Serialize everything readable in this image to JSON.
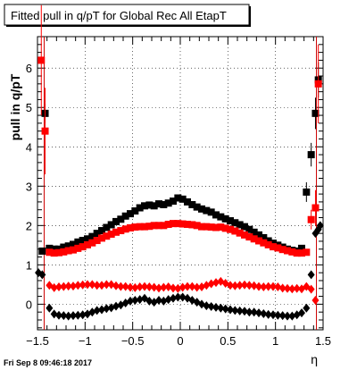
{
  "chart_data": {
    "type": "scatter",
    "title": "Fitted pull in q/pT for Global Rec All EtapT",
    "xlabel": "η",
    "ylabel": "pull in q/pT",
    "footer": "Fri Sep  8 09:46:18 2017",
    "xlim": [
      -1.5,
      1.5
    ],
    "ylim": [
      -0.65,
      6.8
    ],
    "x_ticks": [
      {
        "v": -1.5,
        "label": "−1.5"
      },
      {
        "v": -1,
        "label": "−1"
      },
      {
        "v": -0.5,
        "label": "−0.5"
      },
      {
        "v": 0,
        "label": "0"
      },
      {
        "v": 0.5,
        "label": "0.5"
      },
      {
        "v": 1,
        "label": "1"
      },
      {
        "v": 1.5,
        "label": "1.5"
      }
    ],
    "y_ticks": [
      {
        "v": 0,
        "label": "0"
      },
      {
        "v": 1,
        "label": "1"
      },
      {
        "v": 2,
        "label": "2"
      },
      {
        "v": 3,
        "label": "3"
      },
      {
        "v": 4,
        "label": "4"
      },
      {
        "v": 5,
        "label": "5"
      },
      {
        "v": 6,
        "label": "6"
      }
    ],
    "grid": true,
    "vertical_lines": {
      "x": [
        -1.43,
        1.43
      ],
      "color": "#cc0000"
    },
    "colors": {
      "black": "#000000",
      "red": "#ff0000"
    },
    "series": [
      {
        "marker": "square",
        "color": "#000000",
        "x": [
          -1.45,
          -1.42,
          -1.375,
          -1.325,
          -1.275,
          -1.225,
          -1.175,
          -1.125,
          -1.075,
          -1.025,
          -0.975,
          -0.925,
          -0.875,
          -0.825,
          -0.775,
          -0.725,
          -0.675,
          -0.625,
          -0.575,
          -0.525,
          -0.475,
          -0.425,
          -0.375,
          -0.325,
          -0.275,
          -0.225,
          -0.175,
          -0.125,
          -0.075,
          -0.025,
          0.025,
          0.075,
          0.125,
          0.175,
          0.225,
          0.275,
          0.325,
          0.375,
          0.425,
          0.475,
          0.525,
          0.575,
          0.625,
          0.675,
          0.725,
          0.775,
          0.825,
          0.875,
          0.925,
          0.975,
          1.025,
          1.075,
          1.125,
          1.175,
          1.225,
          1.275,
          1.325,
          1.375,
          1.42,
          1.45
        ],
        "y": [
          1.35,
          4.85,
          1.42,
          1.4,
          1.4,
          1.45,
          1.48,
          1.52,
          1.58,
          1.62,
          1.66,
          1.72,
          1.8,
          1.87,
          1.95,
          2.02,
          2.1,
          2.16,
          2.24,
          2.3,
          2.37,
          2.45,
          2.5,
          2.52,
          2.5,
          2.55,
          2.53,
          2.57,
          2.62,
          2.7,
          2.67,
          2.6,
          2.53,
          2.47,
          2.42,
          2.38,
          2.34,
          2.27,
          2.22,
          2.17,
          2.12,
          2.07,
          2.02,
          1.97,
          1.9,
          1.83,
          1.76,
          1.69,
          1.61,
          1.55,
          1.5,
          1.45,
          1.4,
          1.37,
          1.35,
          1.42,
          2.85,
          3.8,
          4.85,
          5.7
        ],
        "err": [
          0,
          0.25,
          0,
          0,
          0,
          0,
          0,
          0,
          0,
          0,
          0,
          0,
          0,
          0,
          0,
          0,
          0,
          0,
          0,
          0,
          0,
          0,
          0,
          0,
          0,
          0,
          0,
          0,
          0,
          0,
          0,
          0,
          0,
          0,
          0,
          0,
          0,
          0,
          0,
          0,
          0,
          0,
          0,
          0,
          0,
          0,
          0,
          0,
          0,
          0,
          0,
          0,
          0,
          0,
          0,
          0,
          0.25,
          0.3,
          0.4,
          0.45
        ]
      },
      {
        "marker": "square",
        "color": "#ff0000",
        "x": [
          -1.46,
          -1.42,
          -1.375,
          -1.325,
          -1.275,
          -1.225,
          -1.175,
          -1.125,
          -1.075,
          -1.025,
          -0.975,
          -0.925,
          -0.875,
          -0.825,
          -0.775,
          -0.725,
          -0.675,
          -0.625,
          -0.575,
          -0.525,
          -0.475,
          -0.425,
          -0.375,
          -0.325,
          -0.275,
          -0.225,
          -0.175,
          -0.125,
          -0.075,
          -0.025,
          0.025,
          0.075,
          0.125,
          0.175,
          0.225,
          0.275,
          0.325,
          0.375,
          0.425,
          0.475,
          0.525,
          0.575,
          0.625,
          0.675,
          0.725,
          0.775,
          0.825,
          0.875,
          0.925,
          0.975,
          1.025,
          1.075,
          1.125,
          1.175,
          1.225,
          1.275,
          1.325,
          1.375,
          1.42,
          1.45
        ],
        "y": [
          6.2,
          4.4,
          1.32,
          1.3,
          1.31,
          1.33,
          1.36,
          1.38,
          1.42,
          1.46,
          1.51,
          1.56,
          1.62,
          1.68,
          1.73,
          1.78,
          1.83,
          1.87,
          1.91,
          1.94,
          1.96,
          1.97,
          1.97,
          1.98,
          2.0,
          2.0,
          2.0,
          2.03,
          2.05,
          2.05,
          2.04,
          2.03,
          2.02,
          2.0,
          1.97,
          1.97,
          1.96,
          1.95,
          1.96,
          1.93,
          1.9,
          1.86,
          1.81,
          1.76,
          1.71,
          1.66,
          1.61,
          1.56,
          1.51,
          1.46,
          1.43,
          1.39,
          1.36,
          1.33,
          1.3,
          1.3,
          1.32,
          2.15,
          2.45,
          5.6
        ],
        "err": [
          1.4,
          1.1,
          0,
          0,
          0,
          0,
          0,
          0,
          0,
          0,
          0,
          0,
          0,
          0,
          0,
          0,
          0,
          0,
          0,
          0,
          0,
          0,
          0,
          0,
          0,
          0,
          0,
          0,
          0,
          0,
          0,
          0,
          0,
          0,
          0,
          0,
          0,
          0,
          0,
          0,
          0,
          0,
          0,
          0,
          0,
          0,
          0,
          0,
          0,
          0,
          0,
          0,
          0,
          0,
          0,
          0,
          0,
          0.25,
          0.45,
          1.0
        ]
      },
      {
        "marker": "diamond",
        "color": "#ff0000",
        "x": [
          -1.375,
          -1.325,
          -1.275,
          -1.225,
          -1.175,
          -1.125,
          -1.075,
          -1.025,
          -0.975,
          -0.925,
          -0.875,
          -0.825,
          -0.775,
          -0.725,
          -0.675,
          -0.625,
          -0.575,
          -0.525,
          -0.475,
          -0.425,
          -0.375,
          -0.325,
          -0.275,
          -0.225,
          -0.175,
          -0.125,
          -0.075,
          -0.025,
          0.025,
          0.075,
          0.125,
          0.175,
          0.225,
          0.275,
          0.325,
          0.375,
          0.425,
          0.475,
          0.525,
          0.575,
          0.625,
          0.675,
          0.725,
          0.775,
          0.825,
          0.875,
          0.925,
          0.975,
          1.025,
          1.075,
          1.125,
          1.175,
          1.225,
          1.275,
          1.325,
          1.375,
          1.42
        ],
        "y": [
          0.48,
          0.42,
          0.44,
          0.45,
          0.46,
          0.46,
          0.48,
          0.49,
          0.5,
          0.5,
          0.48,
          0.48,
          0.5,
          0.5,
          0.47,
          0.45,
          0.45,
          0.43,
          0.42,
          0.44,
          0.45,
          0.44,
          0.43,
          0.41,
          0.43,
          0.44,
          0.41,
          0.4,
          0.43,
          0.45,
          0.45,
          0.43,
          0.44,
          0.48,
          0.52,
          0.55,
          0.58,
          0.53,
          0.48,
          0.47,
          0.48,
          0.49,
          0.48,
          0.47,
          0.45,
          0.44,
          0.45,
          0.45,
          0.44,
          0.41,
          0.4,
          0.39,
          0.4,
          0.39,
          0.45,
          0.38,
          0.1
        ],
        "err": []
      },
      {
        "marker": "diamond",
        "color": "#000000",
        "x": [
          -1.49,
          -1.45,
          -1.375,
          -1.325,
          -1.275,
          -1.225,
          -1.175,
          -1.125,
          -1.075,
          -1.025,
          -0.975,
          -0.925,
          -0.875,
          -0.825,
          -0.775,
          -0.725,
          -0.675,
          -0.625,
          -0.575,
          -0.525,
          -0.475,
          -0.425,
          -0.375,
          -0.325,
          -0.275,
          -0.225,
          -0.175,
          -0.125,
          -0.075,
          -0.025,
          0.025,
          0.075,
          0.125,
          0.175,
          0.225,
          0.275,
          0.325,
          0.375,
          0.425,
          0.475,
          0.525,
          0.575,
          0.625,
          0.675,
          0.725,
          0.775,
          0.825,
          0.875,
          0.925,
          0.975,
          1.025,
          1.075,
          1.125,
          1.175,
          1.225,
          1.275,
          1.325,
          1.375,
          1.42,
          1.45,
          1.47
        ],
        "y": [
          0.8,
          0.75,
          -0.1,
          -0.25,
          -0.28,
          -0.29,
          -0.3,
          -0.29,
          -0.28,
          -0.27,
          -0.25,
          -0.2,
          -0.16,
          -0.14,
          -0.11,
          -0.09,
          -0.05,
          -0.02,
          0.03,
          0.08,
          0.1,
          0.12,
          0.15,
          0.08,
          0.05,
          0.1,
          0.08,
          0.12,
          0.15,
          0.18,
          0.18,
          0.15,
          0.1,
          0.05,
          0.0,
          -0.04,
          -0.06,
          -0.08,
          -0.1,
          -0.12,
          -0.14,
          -0.16,
          -0.17,
          -0.18,
          -0.2,
          -0.2,
          -0.22,
          -0.24,
          -0.26,
          -0.27,
          -0.28,
          -0.29,
          -0.3,
          -0.3,
          -0.27,
          -0.22,
          -0.1,
          0.75,
          1.8,
          1.9,
          2.0
        ],
        "err": []
      }
    ]
  }
}
